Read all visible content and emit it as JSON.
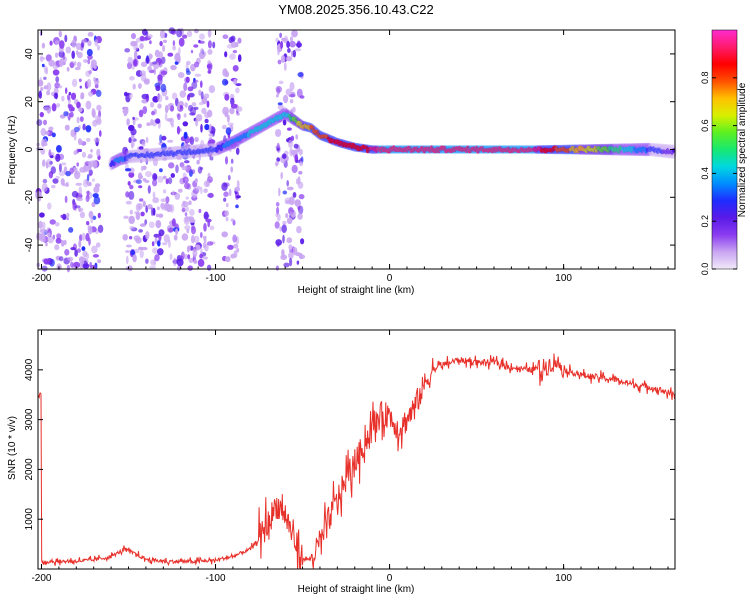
{
  "title": "YM08.2025.356.10.43.C22",
  "chart_data": [
    {
      "type": "heatmap",
      "name": "spectrogram",
      "xlabel": "Height of straight line (km)",
      "ylabel": "Frequency (Hz)",
      "xlim": [
        -202,
        164
      ],
      "ylim": [
        -50,
        50
      ],
      "xticks": [
        -200,
        -100,
        0,
        100
      ],
      "yticks": [
        -40,
        -20,
        0,
        20,
        40
      ],
      "colorbar": {
        "label": "Normalized spectral amplitude",
        "range": [
          0,
          1
        ],
        "ticks": [
          0.0,
          0.2,
          0.4,
          0.6,
          0.8
        ],
        "colors": [
          "#f2eafa",
          "#c9a6f2",
          "#8a3cf0",
          "#5a1ae8",
          "#1f2cff",
          "#008cff",
          "#00d8e0",
          "#18e870",
          "#5cf020",
          "#d8f000",
          "#ffc000",
          "#ff5000",
          "#ff0000",
          "#ff1b6c",
          "#ff2bd0"
        ]
      },
      "noise_band_x_ranges": [
        [
          -202,
          -166
        ],
        [
          -152,
          -101
        ],
        [
          -95,
          -86
        ],
        [
          -65,
          -50
        ]
      ],
      "ridge": [
        {
          "x": -160,
          "y": -6,
          "amp": 0.3
        },
        {
          "x": -155,
          "y": -4,
          "amp": 0.35
        },
        {
          "x": -150,
          "y": -3,
          "amp": 0.3
        },
        {
          "x": -100,
          "y": 0,
          "amp": 0.3
        },
        {
          "x": -90,
          "y": 3,
          "amp": 0.35
        },
        {
          "x": -80,
          "y": 7,
          "amp": 0.4
        },
        {
          "x": -70,
          "y": 11,
          "amp": 0.45
        },
        {
          "x": -60,
          "y": 15,
          "amp": 0.4
        },
        {
          "x": -50,
          "y": 10,
          "amp": 0.7
        },
        {
          "x": -45,
          "y": 9,
          "amp": 0.75
        },
        {
          "x": -40,
          "y": 6,
          "amp": 0.8
        },
        {
          "x": -30,
          "y": 3,
          "amp": 0.85
        },
        {
          "x": -20,
          "y": 1,
          "amp": 0.85
        },
        {
          "x": -10,
          "y": 0,
          "amp": 0.9
        },
        {
          "x": 0,
          "y": 0,
          "amp": 0.95
        },
        {
          "x": 20,
          "y": 0,
          "amp": 0.95
        },
        {
          "x": 50,
          "y": 0,
          "amp": 0.95
        },
        {
          "x": 80,
          "y": 0,
          "amp": 0.95
        },
        {
          "x": 110,
          "y": 0,
          "amp": 0.7
        },
        {
          "x": 130,
          "y": 0,
          "amp": 0.5
        },
        {
          "x": 150,
          "y": 0,
          "amp": 0.3
        },
        {
          "x": 164,
          "y": -1,
          "amp": 0.2
        }
      ]
    },
    {
      "type": "line",
      "name": "snr",
      "xlabel": "Height of straight line (km)",
      "ylabel": "SNR (10 * v/v)",
      "xlim": [
        -202,
        164
      ],
      "ylim": [
        0,
        4800
      ],
      "xticks": [
        -200,
        -100,
        0,
        100
      ],
      "yticks": [
        1000,
        2000,
        3000,
        4000
      ],
      "color": "#e8302a",
      "series": [
        {
          "name": "SNR",
          "x": [
            -200,
            -190,
            -180,
            -170,
            -160,
            -152,
            -146,
            -140,
            -130,
            -120,
            -110,
            -100,
            -90,
            -80,
            -75,
            -70,
            -65,
            -60,
            -55,
            -50,
            -45,
            -40,
            -35,
            -30,
            -25,
            -20,
            -15,
            -10,
            -5,
            0,
            5,
            10,
            15,
            20,
            25,
            30,
            40,
            50,
            60,
            70,
            80,
            90,
            95,
            100,
            110,
            120,
            130,
            140,
            150,
            160,
            164
          ],
          "y": [
            150,
            150,
            160,
            180,
            250,
            400,
            300,
            200,
            150,
            150,
            150,
            180,
            250,
            400,
            600,
            900,
            1300,
            1100,
            600,
            200,
            200,
            500,
            1000,
            1400,
            1800,
            2100,
            2500,
            2800,
            3100,
            3100,
            2800,
            3000,
            3300,
            3700,
            4000,
            4100,
            4200,
            4150,
            4150,
            4050,
            4000,
            4050,
            4200,
            4000,
            3900,
            3850,
            3800,
            3700,
            3650,
            3550,
            3450
          ]
        }
      ]
    }
  ]
}
